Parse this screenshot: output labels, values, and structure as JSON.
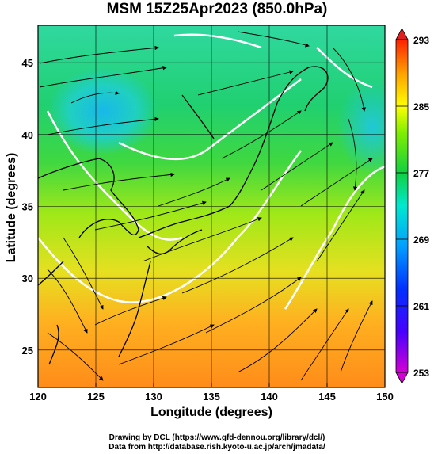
{
  "title": "MSM 15Z25Apr2023 (850.0hPa)",
  "xaxis": {
    "label": "Longitude (degrees)",
    "ticks": [
      120,
      125,
      130,
      135,
      140,
      145,
      150
    ],
    "range": [
      120,
      150
    ]
  },
  "yaxis": {
    "label": "Latitude  (degrees)",
    "ticks": [
      25,
      30,
      35,
      40,
      45
    ],
    "range": [
      22.4,
      47.6
    ]
  },
  "colorbar": {
    "ticks": [
      253,
      261,
      269,
      277,
      285,
      293
    ],
    "range": [
      253,
      293
    ],
    "colors": [
      "#d700d7",
      "#2000ff",
      "#0090ff",
      "#00e0ff",
      "#10d030",
      "#7aef00",
      "#ffff00",
      "#ffb000",
      "#ff3000",
      "#e02020"
    ]
  },
  "credits": {
    "line1": "Drawing by DCL (https://www.gfd-dennou.org/library/dcl/)",
    "line2": "Data from http://database.rish.kyoto-u.ac.jp/arch/jmadata/"
  }
}
